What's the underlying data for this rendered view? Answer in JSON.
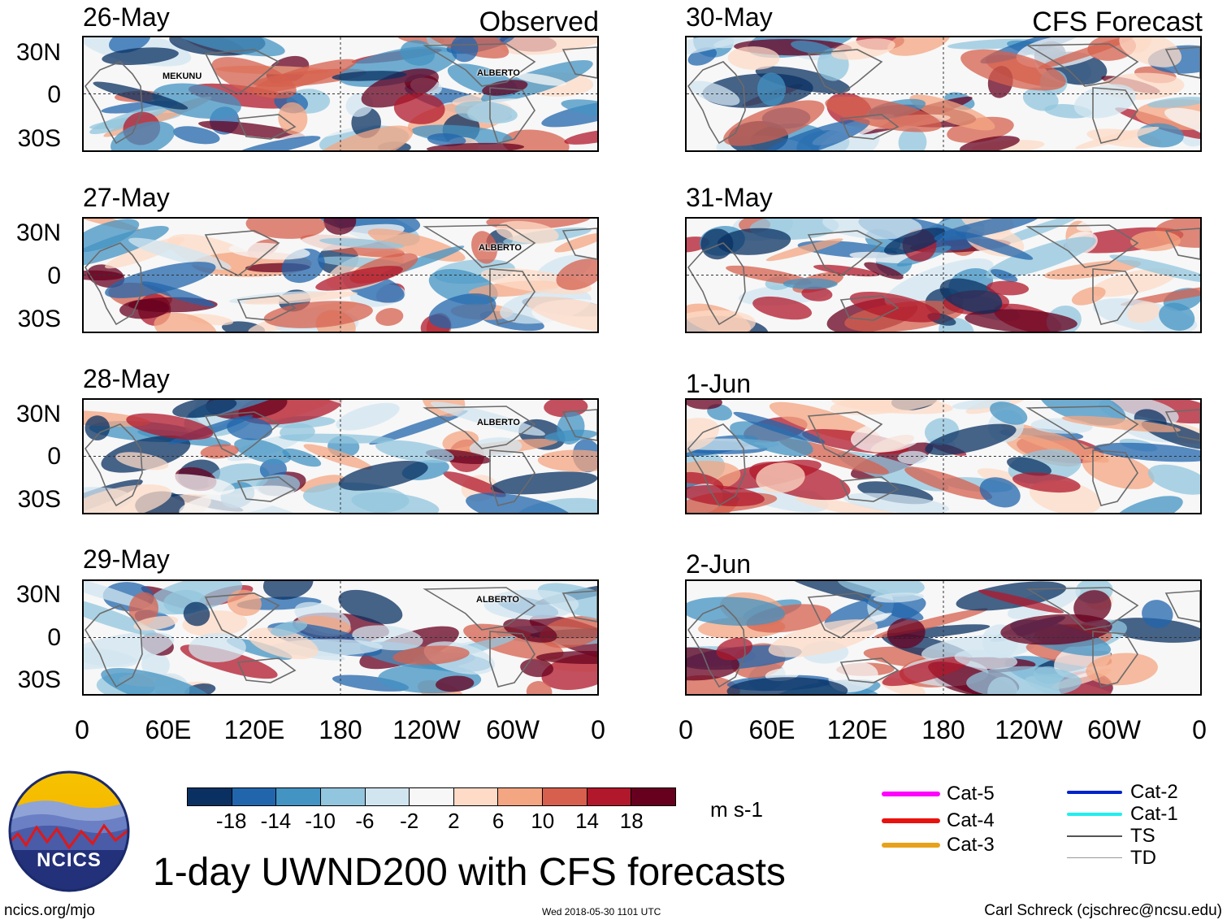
{
  "headers": {
    "observed": "Observed",
    "forecast": "CFS Forecast"
  },
  "panels": {
    "observed": [
      {
        "date": "26-May",
        "storms": [
          "MEKUNU",
          "ALBERTO"
        ]
      },
      {
        "date": "27-May",
        "storms": [
          "ALBERTO"
        ]
      },
      {
        "date": "28-May",
        "storms": [
          "ALBERTO"
        ]
      },
      {
        "date": "29-May",
        "storms": [
          "ALBERTO"
        ]
      }
    ],
    "forecast": [
      {
        "date": "30-May"
      },
      {
        "date": "31-May"
      },
      {
        "date": "1-Jun"
      },
      {
        "date": "2-Jun"
      }
    ]
  },
  "lat_labels": [
    "30N",
    "0",
    "30S"
  ],
  "lon_labels": [
    "0",
    "60E",
    "120E",
    "180",
    "120W",
    "60W",
    "0"
  ],
  "colorbar": {
    "labels": [
      "-18",
      "-14",
      "-10",
      "-6",
      "-2",
      "2",
      "6",
      "10",
      "14",
      "18"
    ],
    "colors": [
      "#0a3062",
      "#2166ac",
      "#4393c3",
      "#92c5de",
      "#d1e5f0",
      "#f7f7f7",
      "#fddbc7",
      "#f4a582",
      "#d6604d",
      "#b2182b",
      "#67001f"
    ],
    "units": "m s-1"
  },
  "legend": {
    "left": [
      {
        "label": "Cat-5",
        "color": "#ff00ff"
      },
      {
        "label": "Cat-4",
        "color": "#e8120e"
      },
      {
        "label": "Cat-3",
        "color": "#e8a21a"
      }
    ],
    "right": [
      {
        "label": "Cat-2",
        "color": "#0022cc"
      },
      {
        "label": "Cat-1",
        "color": "#22eeee"
      },
      {
        "label": "TS",
        "color": "#555555"
      },
      {
        "label": "TD",
        "color": "#999999"
      }
    ]
  },
  "logo": {
    "text": "NCICS"
  },
  "title": "1-day UWND200 with CFS forecasts",
  "footer": {
    "url": "ncics.org/mjo",
    "timestamp": "Wed 2018-05-30 1101 UTC",
    "author": "Carl Schreck (cjschrec@ncsu.edu)"
  }
}
